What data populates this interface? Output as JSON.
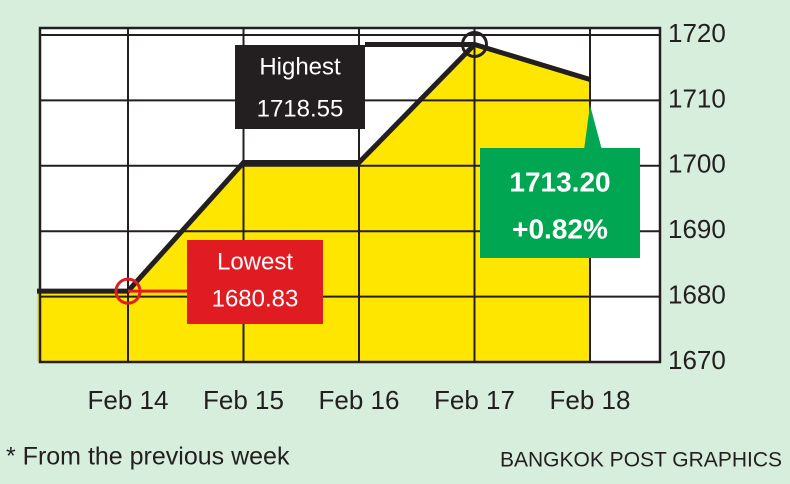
{
  "chart_data": {
    "type": "area-line",
    "categories": [
      null,
      "Feb 14",
      "Feb 15",
      "Feb 16",
      "Feb 17",
      "Feb 18"
    ],
    "values": [
      1680.83,
      1680.83,
      1700.5,
      1700.5,
      1718.55,
      1713.2
    ],
    "color": "#231f20",
    "fill": "#ffe600",
    "ylim": [
      1670,
      1720
    ],
    "yticks": [
      1670,
      1680,
      1690,
      1700,
      1710,
      1720
    ],
    "grid": true,
    "annotations": [
      {
        "lines": [
          "Highest",
          "1718.55"
        ],
        "color": "#231f20"
      },
      {
        "lines": [
          "Lowest",
          "1680.83"
        ],
        "color": "#e11b22"
      },
      {
        "lines": [
          "1713.20",
          "+0.82%"
        ],
        "color": "#00a651"
      }
    ],
    "footnote": "* From the previous week",
    "source": "BANGKOK POST GRAPHICS"
  }
}
